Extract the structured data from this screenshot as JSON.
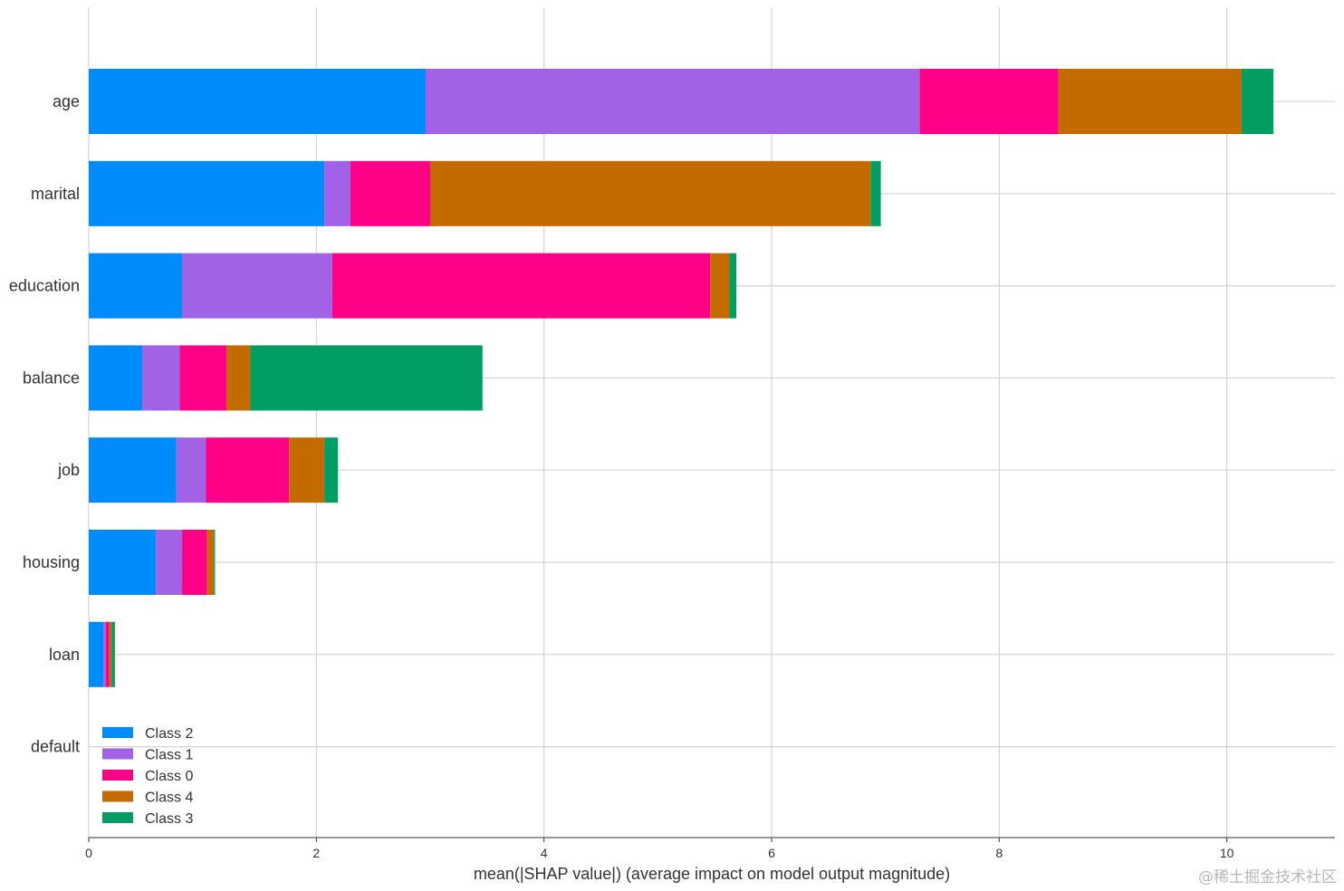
{
  "chart_data": {
    "type": "bar",
    "orientation": "horizontal",
    "stacked": true,
    "categories": [
      "age",
      "marital",
      "education",
      "balance",
      "job",
      "housing",
      "loan",
      "default"
    ],
    "series": [
      {
        "name": "Class 2",
        "color": "#008bfb",
        "values": [
          2.96,
          2.07,
          0.82,
          0.47,
          0.77,
          0.59,
          0.13,
          0.0
        ]
      },
      {
        "name": "Class 1",
        "color": "#a262e6",
        "values": [
          4.34,
          0.23,
          1.32,
          0.33,
          0.26,
          0.23,
          0.02,
          0.0
        ]
      },
      {
        "name": "Class 0",
        "color": "#ff0086",
        "values": [
          1.22,
          0.7,
          3.32,
          0.41,
          0.73,
          0.22,
          0.03,
          0.0
        ]
      },
      {
        "name": "Class 4",
        "color": "#c36b00",
        "values": [
          1.61,
          3.87,
          0.17,
          0.21,
          0.31,
          0.06,
          0.02,
          0.0
        ]
      },
      {
        "name": "Class 3",
        "color": "#009e63",
        "values": [
          0.28,
          0.09,
          0.06,
          2.04,
          0.12,
          0.01,
          0.03,
          0.0
        ]
      }
    ],
    "xlabel": "mean(|SHAP value|) (average impact on model output magnitude)",
    "ylabel": "",
    "xlim": [
      0,
      10.95
    ],
    "xticks": [
      0,
      2,
      4,
      6,
      8,
      10
    ],
    "grid": true,
    "legend_position": "lower-left"
  },
  "watermark": "@稀土掘金技术社区"
}
